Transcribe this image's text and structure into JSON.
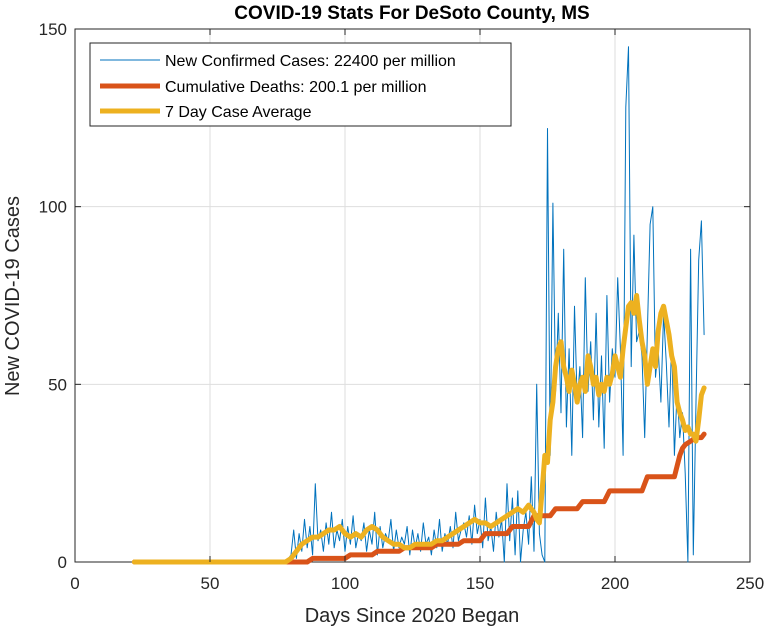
{
  "chart_data": {
    "type": "line",
    "title": "COVID-19 Stats For DeSoto County, MS",
    "xlabel": "Days Since 2020 Began",
    "ylabel": "New COVID-19 Cases",
    "xlim": [
      0,
      250
    ],
    "ylim": [
      0,
      150
    ],
    "xticks": [
      0,
      50,
      100,
      150,
      200,
      250
    ],
    "yticks": [
      0,
      50,
      100,
      150
    ],
    "grid": true,
    "legend_position": "top-left",
    "series": [
      {
        "name": "New Confirmed Cases: 22400 per million",
        "color": "#0072BD",
        "x": [
          22,
          30,
          40,
          50,
          60,
          70,
          78,
          80,
          81,
          82,
          83,
          84,
          85,
          86,
          87,
          88,
          89,
          90,
          91,
          92,
          93,
          94,
          95,
          96,
          97,
          98,
          99,
          100,
          101,
          102,
          103,
          104,
          105,
          106,
          107,
          108,
          109,
          110,
          111,
          112,
          113,
          114,
          115,
          116,
          117,
          118,
          119,
          120,
          121,
          122,
          123,
          124,
          125,
          126,
          127,
          128,
          129,
          130,
          131,
          132,
          133,
          134,
          135,
          136,
          137,
          138,
          139,
          140,
          141,
          142,
          143,
          144,
          145,
          146,
          147,
          148,
          149,
          150,
          151,
          152,
          153,
          154,
          155,
          156,
          157,
          158,
          159,
          160,
          161,
          162,
          163,
          164,
          165,
          166,
          167,
          168,
          169,
          170,
          171,
          172,
          173,
          174,
          175,
          176,
          177,
          178,
          179,
          180,
          181,
          182,
          183,
          184,
          185,
          186,
          187,
          188,
          189,
          190,
          191,
          192,
          193,
          194,
          195,
          196,
          197,
          198,
          199,
          200,
          201,
          202,
          203,
          204,
          205,
          206,
          207,
          208,
          209,
          210,
          211,
          212,
          213,
          214,
          215,
          216,
          217,
          218,
          219,
          220,
          221,
          222,
          223,
          224,
          225,
          226,
          227,
          228,
          229,
          230,
          231,
          232,
          233
        ],
        "values": [
          0,
          0,
          0,
          0,
          0,
          0,
          0,
          2,
          9,
          1,
          8,
          3,
          12,
          4,
          10,
          2,
          22,
          6,
          9,
          3,
          11,
          5,
          14,
          4,
          9,
          6,
          12,
          3,
          10,
          5,
          13,
          4,
          8,
          6,
          11,
          3,
          9,
          5,
          14,
          2,
          10,
          4,
          8,
          6,
          12,
          3,
          9,
          4,
          7,
          5,
          10,
          2,
          9,
          4,
          8,
          3,
          11,
          5,
          7,
          2,
          9,
          4,
          12,
          3,
          8,
          5,
          10,
          4,
          14,
          6,
          9,
          11,
          7,
          13,
          5,
          16,
          8,
          12,
          4,
          18,
          6,
          10,
          3,
          14,
          7,
          12,
          0,
          22,
          6,
          18,
          2,
          20,
          0,
          9,
          14,
          5,
          24,
          3,
          50,
          8,
          2,
          0,
          122,
          30,
          101,
          48,
          70,
          42,
          88,
          38,
          60,
          30,
          72,
          45,
          55,
          35,
          80,
          48,
          62,
          40,
          70,
          38,
          58,
          32,
          75,
          45,
          60,
          52,
          80,
          60,
          30,
          128,
          145,
          55,
          92,
          62,
          65,
          58,
          35,
          65,
          95,
          100,
          52,
          60,
          45,
          70,
          56,
          38,
          62,
          30,
          48,
          35,
          42,
          25,
          0,
          88,
          2,
          45,
          85,
          96,
          64
        ]
      },
      {
        "name": "Cumulative Deaths: 200.1 per million",
        "color": "#D95319",
        "x": [
          22,
          86,
          88,
          100,
          102,
          110,
          112,
          120,
          122,
          132,
          134,
          142,
          144,
          150,
          152,
          160,
          162,
          168,
          170,
          176,
          178,
          186,
          188,
          196,
          198,
          210,
          212,
          222,
          224,
          225,
          226,
          228,
          230,
          232,
          233
        ],
        "values": [
          0,
          0,
          1,
          1,
          2,
          2,
          3,
          3,
          4,
          4,
          5,
          5,
          6,
          6,
          8,
          8,
          10,
          10,
          13,
          13,
          15,
          15,
          17,
          17,
          20,
          20,
          24,
          24,
          30,
          32,
          33,
          34,
          35,
          35,
          36
        ]
      },
      {
        "name": "7 Day Case Average",
        "color": "#EDB120",
        "x": [
          22,
          78,
          80,
          82,
          84,
          86,
          88,
          90,
          92,
          94,
          96,
          98,
          100,
          102,
          104,
          106,
          108,
          110,
          112,
          114,
          116,
          118,
          120,
          122,
          124,
          126,
          128,
          130,
          132,
          134,
          136,
          138,
          140,
          142,
          144,
          146,
          148,
          150,
          152,
          154,
          156,
          158,
          160,
          162,
          164,
          166,
          168,
          169,
          170,
          171,
          172,
          173,
          174,
          175,
          176,
          177,
          178,
          179,
          180,
          181,
          182,
          183,
          184,
          185,
          186,
          187,
          188,
          189,
          190,
          191,
          192,
          193,
          194,
          195,
          196,
          197,
          198,
          199,
          200,
          201,
          202,
          203,
          204,
          205,
          206,
          207,
          208,
          209,
          210,
          211,
          212,
          213,
          214,
          215,
          216,
          217,
          218,
          219,
          220,
          221,
          222,
          223,
          224,
          225,
          226,
          227,
          228,
          229,
          230,
          231,
          232,
          233
        ],
        "values": [
          0,
          0,
          1,
          3,
          5,
          6,
          7,
          7,
          8,
          9,
          9,
          10,
          8,
          7,
          8,
          7,
          9,
          10,
          9,
          7,
          6,
          5,
          5,
          4,
          4,
          5,
          5,
          5,
          5,
          6,
          6,
          7,
          8,
          9,
          10,
          11,
          12,
          11,
          11,
          10,
          11,
          12,
          13,
          14,
          15,
          14,
          16,
          15,
          14,
          12,
          11,
          20,
          30,
          28,
          40,
          45,
          55,
          60,
          62,
          55,
          52,
          48,
          54,
          50,
          45,
          50,
          52,
          48,
          58,
          55,
          50,
          52,
          47,
          50,
          48,
          52,
          50,
          53,
          58,
          55,
          52,
          60,
          66,
          72,
          73,
          70,
          75,
          68,
          62,
          58,
          50,
          55,
          60,
          55,
          65,
          70,
          72,
          68,
          64,
          58,
          55,
          45,
          42,
          40,
          37,
          38,
          36,
          36,
          34,
          40,
          47,
          49
        ]
      }
    ]
  }
}
